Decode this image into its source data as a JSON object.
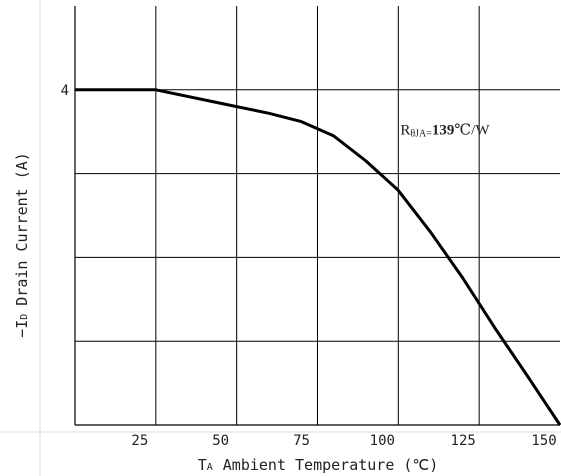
{
  "chart_data": {
    "type": "line",
    "xlabel": "Tₐ Ambient Temperature (℃)",
    "ylabel": "−Iᴅ Drain Current (A)",
    "xlabel_parts": {
      "sym": "T",
      "sub": "A",
      "text": "Ambient Temperature (℃)"
    },
    "ylabel_parts": {
      "sym": "−I",
      "sub": "D",
      "text": "Drain Current (A)"
    },
    "xlim": [
      0,
      150
    ],
    "ylim": [
      0,
      5
    ],
    "xticks": [
      25,
      50,
      75,
      100,
      125,
      150
    ],
    "yticks": [
      4
    ],
    "grid": true,
    "series": [
      {
        "x": [
          0,
          25,
          40,
          50,
          60,
          70,
          80,
          90,
          100,
          110,
          120,
          130,
          140,
          150
        ],
        "y": [
          4.0,
          4.0,
          3.88,
          3.8,
          3.72,
          3.62,
          3.45,
          3.15,
          2.8,
          2.3,
          1.75,
          1.15,
          0.58,
          0.0
        ]
      }
    ],
    "annotations": [
      {
        "sym": "R",
        "sub": "θJA=",
        "value": "139",
        "unit": "℃/W",
        "x": 100,
        "y": 3.5
      }
    ]
  }
}
